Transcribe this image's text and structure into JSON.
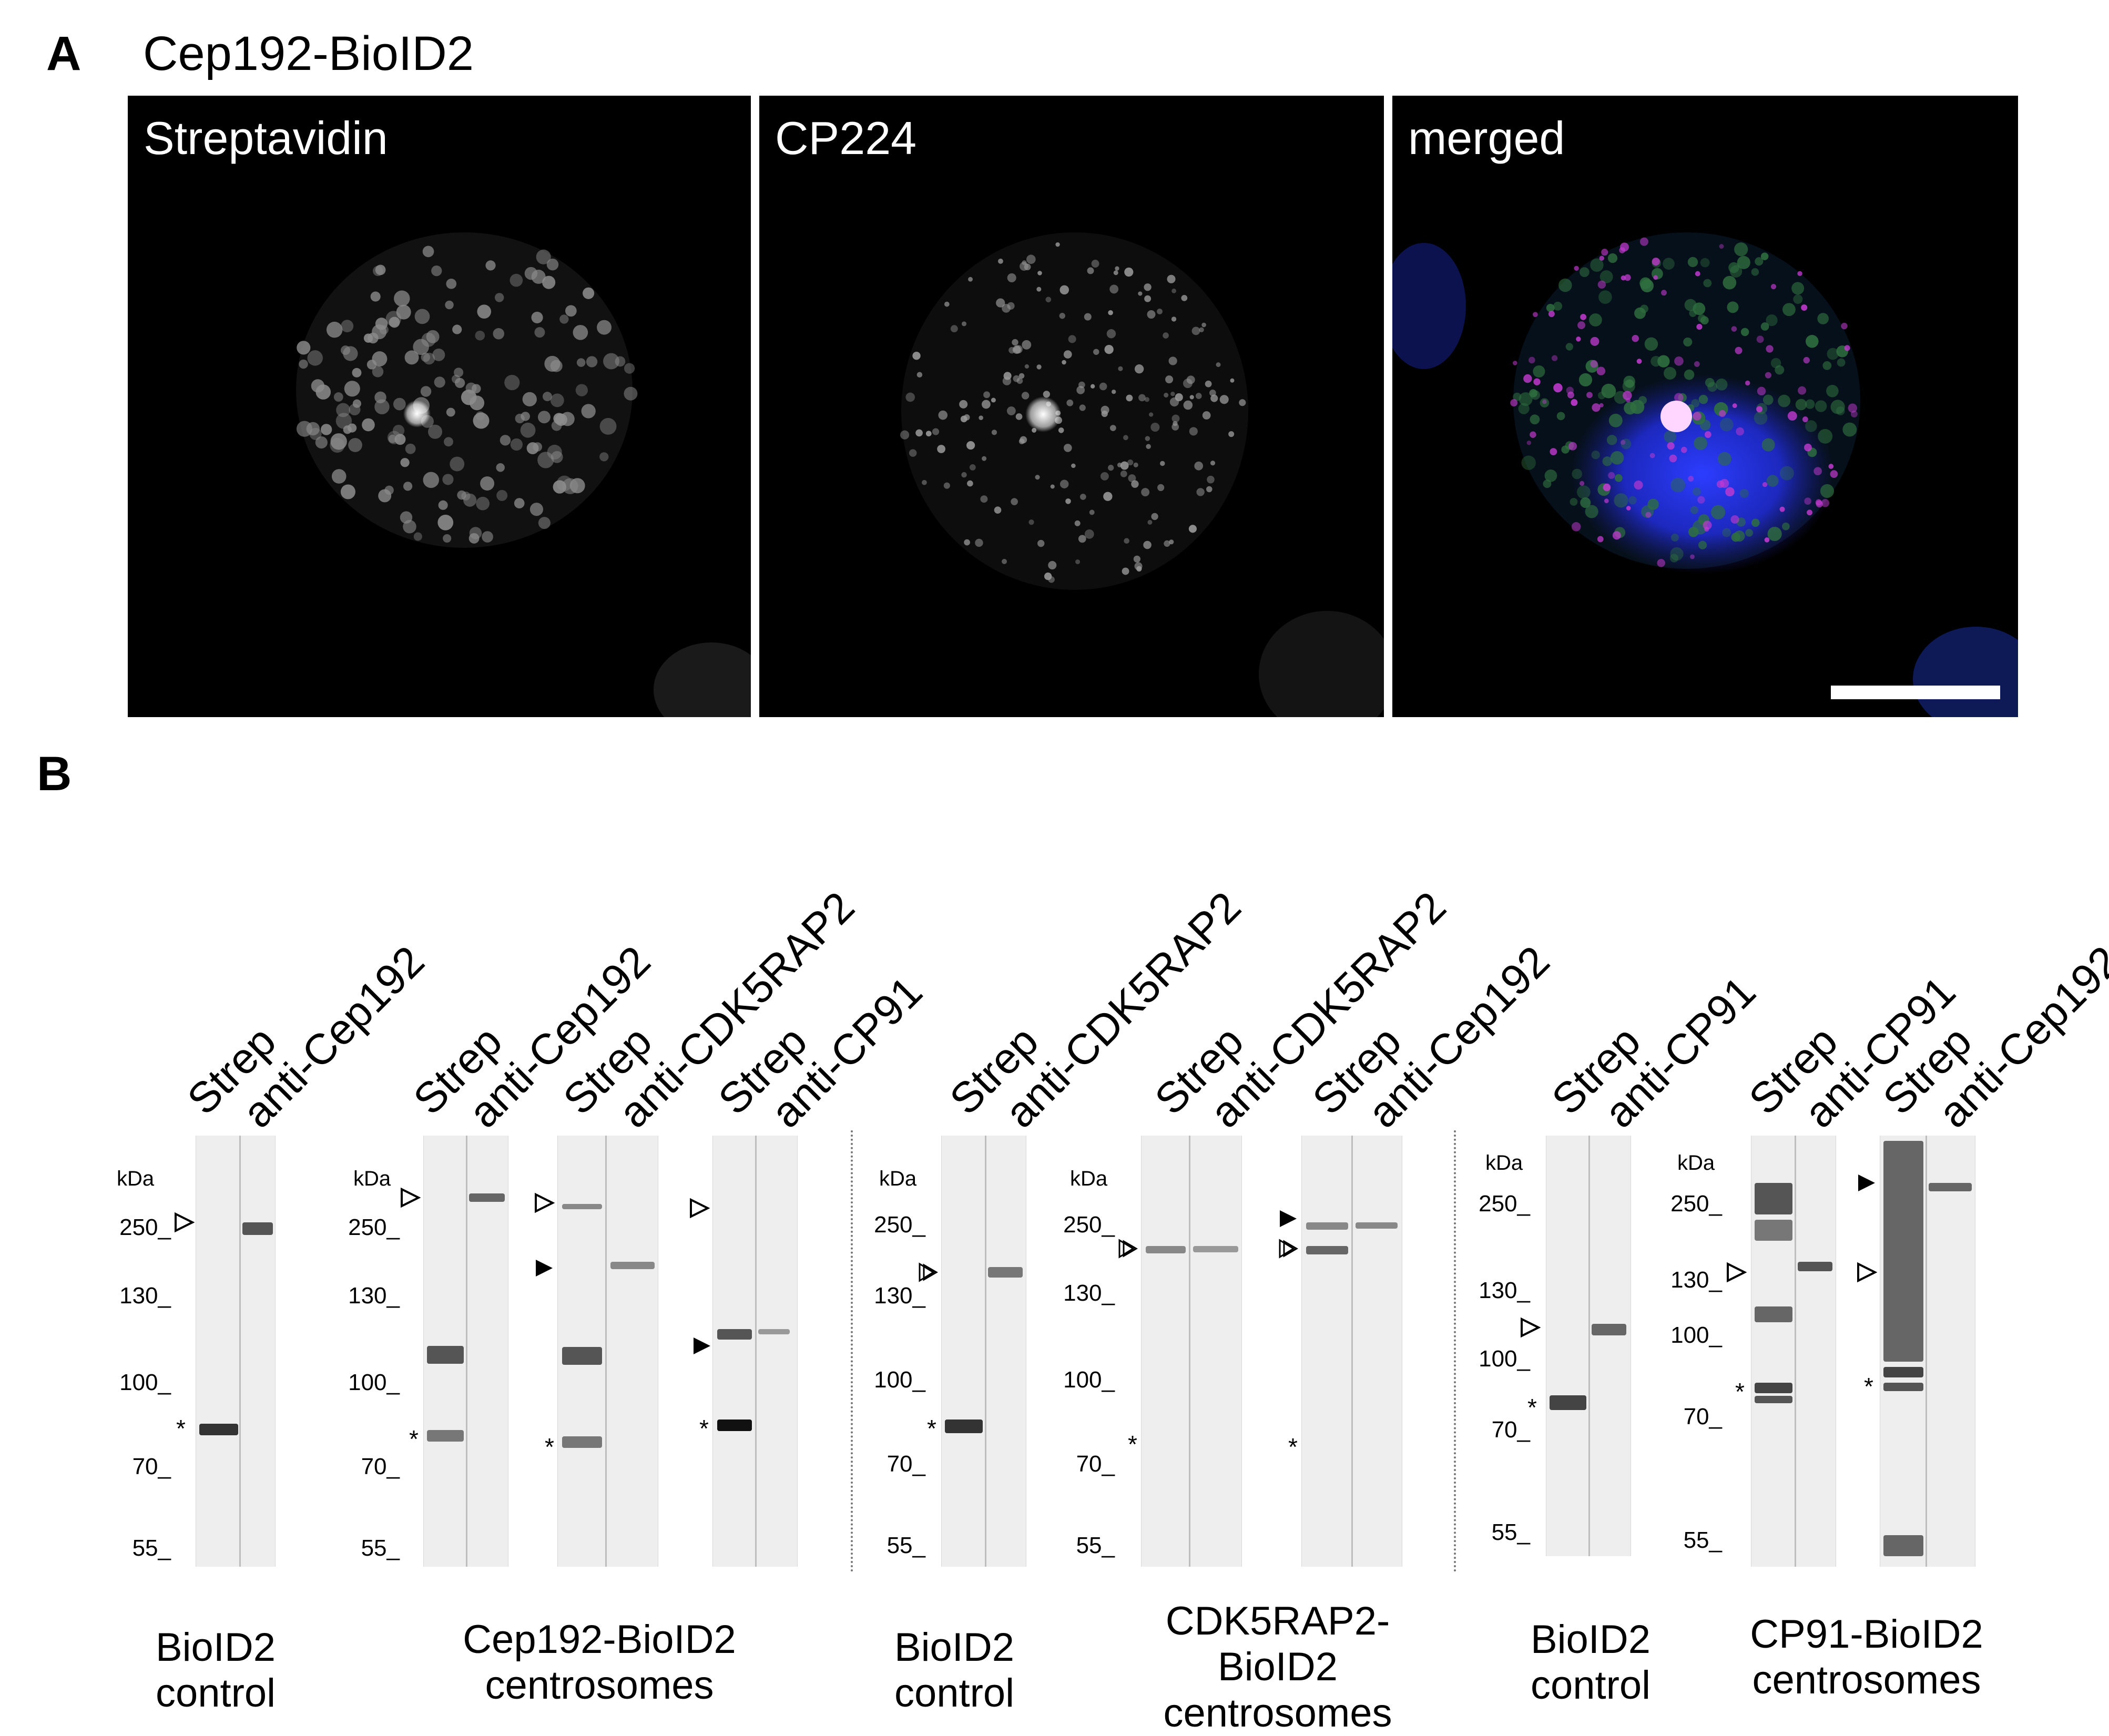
{
  "panel_a": {
    "letter": "A",
    "title": "Cep192-BioID2",
    "images": [
      {
        "label": "Streptavidin"
      },
      {
        "label": "CP224"
      },
      {
        "label": "merged"
      }
    ]
  },
  "panel_b": {
    "letter": "B",
    "kda_label": "kDa",
    "lane_labels": {
      "strep": "Strep",
      "anti_cep192": "anti-Cep192",
      "anti_cdk5rap2": "anti-CDK5RAP2",
      "anti_cp91": "anti-CP91"
    },
    "mw_markers": [
      "250_",
      "130_",
      "100_",
      "70_",
      "55_"
    ],
    "mw_markers_alt": [
      "250_",
      "130_",
      "100_",
      "70_",
      "55_"
    ],
    "asterisk": "*",
    "groups": [
      {
        "label_line1": "BioID2",
        "label_line2": "control"
      },
      {
        "label_line1": "Cep192-BioID2",
        "label_line2": "centrosomes"
      },
      {
        "label_line1": "BioID2",
        "label_line2": "control"
      },
      {
        "label_line1": "CDK5RAP2-",
        "label_line2": "BioID2",
        "label_line3": "centrosomes"
      },
      {
        "label_line1": "BioID2",
        "label_line2": "control"
      },
      {
        "label_line1": "CP91-BioID2",
        "label_line2": "centrosomes"
      }
    ]
  }
}
